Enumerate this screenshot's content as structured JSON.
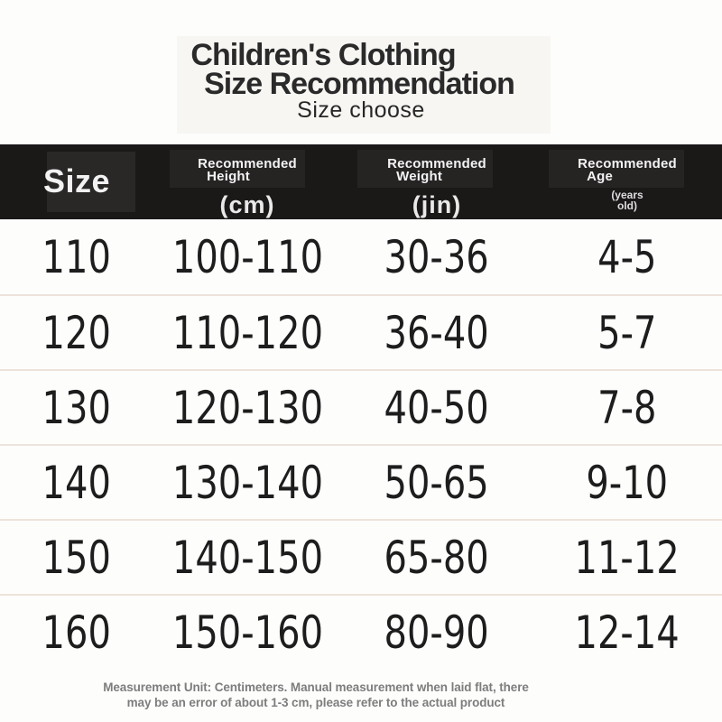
{
  "chart_data": {
    "type": "table",
    "title": "Children's Clothing Size Recommendation",
    "subtitle": "Size choose",
    "columns": [
      "Size",
      "Recommended Height (cm)",
      "Recommended Weight (jin)",
      "Recommended Age (years old)"
    ],
    "rows": [
      [
        "110",
        "100-110",
        "30-36",
        "4-5"
      ],
      [
        "120",
        "110-120",
        "36-40",
        "5-7"
      ],
      [
        "130",
        "120-130",
        "40-50",
        "7-8"
      ],
      [
        "140",
        "130-140",
        "50-65",
        "9-10"
      ],
      [
        "150",
        "140-150",
        "65-80",
        "11-12"
      ],
      [
        "160",
        "150-160",
        "80-90",
        "12-14"
      ]
    ],
    "note": "Measurement Unit: Centimeters. Manual measurement when laid flat, there may be an error of about 1-3 cm, please refer to the actual product"
  },
  "title": {
    "line1": "Children's Clothing",
    "line2": "Size Recommendation",
    "subtitle": "Size choose"
  },
  "header": {
    "size": "Size",
    "height": {
      "l1": "Recommended",
      "l2": "Height",
      "unit": "(cm)"
    },
    "weight": {
      "l1": "Recommended",
      "l2": "Weight",
      "unit": "(jin)"
    },
    "age": {
      "l1": "Recommended",
      "l2": "Age",
      "unit1": "(years",
      "unit2": "old)"
    }
  },
  "rows": [
    {
      "size": "110",
      "height": "100-110",
      "weight": "30-36",
      "age": "4-5"
    },
    {
      "size": "120",
      "height": "110-120",
      "weight": "36-40",
      "age": "5-7"
    },
    {
      "size": "130",
      "height": "120-130",
      "weight": "40-50",
      "age": "7-8"
    },
    {
      "size": "140",
      "height": "130-140",
      "weight": "50-65",
      "age": "9-10"
    },
    {
      "size": "150",
      "height": "140-150",
      "weight": "65-80",
      "age": "11-12"
    },
    {
      "size": "160",
      "height": "150-160",
      "weight": "80-90",
      "age": "12-14"
    }
  ],
  "footer": {
    "line1": "Measurement Unit: Centimeters. Manual measurement when laid flat, there",
    "line2": "may be an error of about 1-3 cm, please refer to the actual product"
  },
  "colors": {
    "header_bg": "#1b1818",
    "divider": "#ede3da",
    "footer_text": "#7d7d7d",
    "text": "#1d1d1d"
  }
}
